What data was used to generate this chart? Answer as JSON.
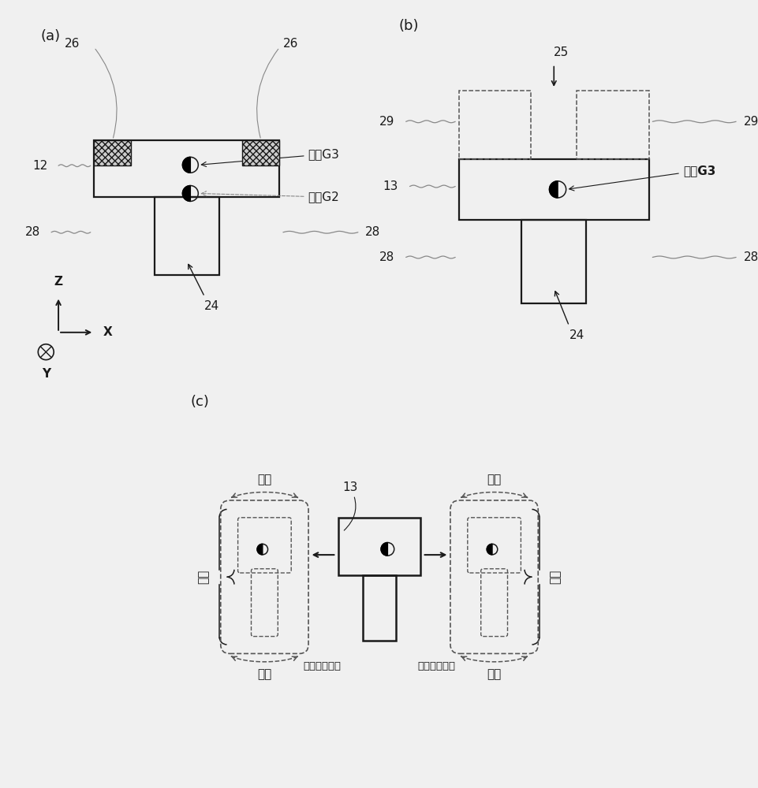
{
  "bg_color": "#f0f0f0",
  "lc": "#1a1a1a",
  "dc": "#555555",
  "gc": "#888888",
  "label_a": "(a)",
  "label_b": "(b)",
  "label_c": "(c)",
  "fs_label": 13,
  "fs_num": 11,
  "fs_cn": 11,
  "lw_main": 1.6,
  "lw_dash": 1.1
}
